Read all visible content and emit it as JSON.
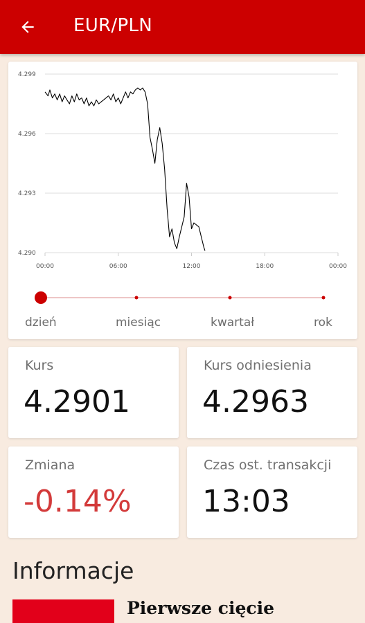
{
  "header": {
    "title": "EUR/PLN",
    "back_icon": "arrow-left-icon",
    "color": "#cc0000"
  },
  "chart_data": {
    "type": "line",
    "title": "",
    "xlabel": "",
    "ylabel": "",
    "x_ticks": [
      "00:00",
      "06:00",
      "12:00",
      "18:00",
      "00:00"
    ],
    "y_ticks": [
      "4.299",
      "4.296",
      "4.293",
      "4.290"
    ],
    "xlim": [
      0,
      24
    ],
    "ylim": [
      4.29,
      4.299
    ],
    "grid": true,
    "series": [
      {
        "line_color": "#000000",
        "x": [
          0.0,
          0.25,
          0.4,
          0.6,
          0.8,
          1.0,
          1.2,
          1.4,
          1.6,
          1.8,
          2.0,
          2.2,
          2.4,
          2.6,
          2.8,
          3.0,
          3.2,
          3.4,
          3.6,
          3.8,
          4.0,
          4.2,
          4.4,
          4.6,
          4.8,
          5.0,
          5.2,
          5.4,
          5.6,
          5.8,
          6.0,
          6.2,
          6.4,
          6.6,
          6.8,
          7.0,
          7.2,
          7.4,
          7.6,
          7.8,
          8.0,
          8.2,
          8.4,
          8.6,
          8.8,
          9.0,
          9.2,
          9.4,
          9.6,
          9.8,
          10.0,
          10.2,
          10.4,
          10.6,
          10.8,
          11.0,
          11.2,
          11.4,
          11.6,
          11.8,
          12.0,
          12.2,
          12.4,
          12.6,
          12.8,
          13.0,
          13.1
        ],
        "values": [
          4.2981,
          4.2979,
          4.2982,
          4.2978,
          4.298,
          4.2977,
          4.298,
          4.2976,
          4.2979,
          4.2977,
          4.2975,
          4.2979,
          4.2976,
          4.298,
          4.2977,
          4.2978,
          4.2975,
          4.2978,
          4.2974,
          4.2976,
          4.2974,
          4.2977,
          4.2975,
          4.2976,
          4.2977,
          4.2978,
          4.2979,
          4.2977,
          4.298,
          4.2976,
          4.2978,
          4.2975,
          4.2978,
          4.2981,
          4.2978,
          4.2981,
          4.298,
          4.2982,
          4.2983,
          4.2982,
          4.2983,
          4.2981,
          4.2975,
          4.2958,
          4.2952,
          4.2945,
          4.2957,
          4.2963,
          4.2955,
          4.2942,
          4.2922,
          4.2908,
          4.2912,
          4.2905,
          4.2902,
          4.2908,
          4.2913,
          4.2918,
          4.2935,
          4.2928,
          4.2912,
          4.2915,
          4.2914,
          4.2913,
          4.2908,
          4.2903,
          4.2901
        ]
      }
    ]
  },
  "range_selector": {
    "options": [
      "dzień",
      "miesiąc",
      "kwartał",
      "rok"
    ],
    "selected_index": 0,
    "track_color": "#e8b4b4",
    "accent_color": "#cc0000"
  },
  "stats": {
    "kurs": {
      "label": "Kurs",
      "value": "4.2901"
    },
    "kurs_odniesienia": {
      "label": "Kurs odniesienia",
      "value": "4.2963"
    },
    "zmiana": {
      "label": "Zmiana",
      "value": "-0.14%",
      "color": "#d33a3a"
    },
    "czas": {
      "label": "Czas ost. transakcji",
      "value": "13:03"
    }
  },
  "info": {
    "title": "Informacje",
    "news": [
      {
        "title": "Pierwsze cięcie",
        "thumb_color": "#e2001a"
      }
    ]
  }
}
